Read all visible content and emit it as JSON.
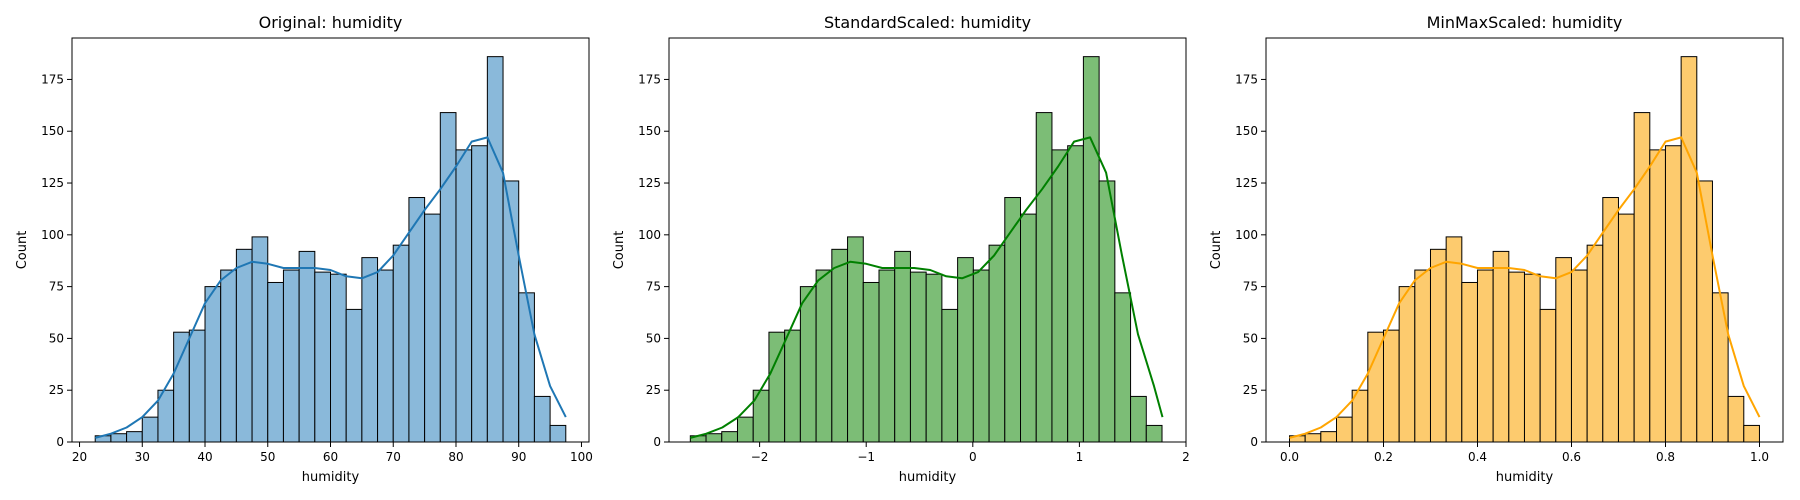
{
  "chart_data": [
    {
      "type": "bar",
      "subtype": "histogram-with-kde",
      "title": "Original: humidity",
      "xlabel": "humidity",
      "ylabel": "Count",
      "xlim": [
        18.8,
        101.2
      ],
      "ylim": [
        0,
        195
      ],
      "xticks": [
        20,
        30,
        40,
        50,
        60,
        70,
        80,
        90,
        100
      ],
      "xtick_labels": [
        "20",
        "30",
        "40",
        "50",
        "60",
        "70",
        "80",
        "90",
        "100"
      ],
      "yticks": [
        0,
        25,
        50,
        75,
        100,
        125,
        150,
        175
      ],
      "ytick_labels": [
        "0",
        "25",
        "50",
        "75",
        "100",
        "125",
        "150",
        "175"
      ],
      "bin_start": 22.5,
      "bin_width": 2.5,
      "counts": [
        3,
        4,
        5,
        12,
        25,
        53,
        54,
        75,
        83,
        93,
        99,
        77,
        83,
        92,
        82,
        81,
        64,
        89,
        83,
        95,
        118,
        110,
        159,
        141,
        143,
        186,
        126,
        72,
        22,
        8
      ],
      "kde": {
        "x": [
          22.5,
          25,
          27.5,
          30,
          32.5,
          35,
          37.5,
          40,
          42.5,
          45,
          47.5,
          50,
          52.5,
          55,
          57.5,
          60,
          62.5,
          65,
          67.5,
          70,
          72.5,
          75,
          77.5,
          80,
          82.5,
          85,
          87.5,
          90,
          92.5,
          95,
          97.5
        ],
        "y": [
          2,
          4,
          7,
          12,
          20,
          33,
          50,
          67,
          78,
          84,
          87,
          86,
          84,
          84,
          84,
          83,
          80,
          79,
          82,
          90,
          101,
          112,
          122,
          133,
          145,
          147,
          130,
          90,
          52,
          27,
          12
        ]
      },
      "bar_color": "#8ab9da",
      "line_color": "#1f77b4"
    },
    {
      "type": "bar",
      "subtype": "histogram-with-kde",
      "title": "StandardScaled: humidity",
      "xlabel": "humidity",
      "ylabel": "Count",
      "xlim": [
        -2.85,
        2.0
      ],
      "ylim": [
        0,
        195
      ],
      "xticks": [
        -2,
        -1,
        0,
        1,
        2
      ],
      "xtick_labels": [
        "−2",
        "−1",
        "0",
        "1",
        "2"
      ],
      "yticks": [
        0,
        25,
        50,
        75,
        100,
        125,
        150,
        175
      ],
      "ytick_labels": [
        "0",
        "25",
        "50",
        "75",
        "100",
        "125",
        "150",
        "175"
      ],
      "bin_start": -2.65,
      "bin_width": 0.1475,
      "counts": [
        3,
        4,
        5,
        12,
        25,
        53,
        54,
        75,
        83,
        93,
        99,
        77,
        83,
        92,
        82,
        81,
        64,
        89,
        83,
        95,
        118,
        110,
        159,
        141,
        143,
        186,
        126,
        72,
        22,
        8
      ],
      "kde": {
        "x": [
          -2.65,
          -2.5,
          -2.35,
          -2.2,
          -2.05,
          -1.9,
          -1.75,
          -1.6,
          -1.45,
          -1.3,
          -1.15,
          -1.0,
          -0.85,
          -0.7,
          -0.55,
          -0.4,
          -0.25,
          -0.1,
          0.05,
          0.2,
          0.35,
          0.5,
          0.65,
          0.8,
          0.95,
          1.1,
          1.25,
          1.4,
          1.55,
          1.7,
          1.78
        ],
        "y": [
          2,
          4,
          7,
          12,
          20,
          33,
          50,
          67,
          78,
          84,
          87,
          86,
          84,
          84,
          84,
          83,
          80,
          79,
          82,
          90,
          101,
          112,
          122,
          133,
          145,
          147,
          130,
          90,
          52,
          27,
          12
        ]
      },
      "bar_color": "#7cbd76",
      "line_color": "#008000"
    },
    {
      "type": "bar",
      "subtype": "histogram-with-kde",
      "title": "MinMaxScaled: humidity",
      "xlabel": "humidity",
      "ylabel": "Count",
      "xlim": [
        -0.05,
        1.05
      ],
      "ylim": [
        0,
        195
      ],
      "xticks": [
        0.0,
        0.2,
        0.4,
        0.6,
        0.8,
        1.0
      ],
      "xtick_labels": [
        "0.0",
        "0.2",
        "0.4",
        "0.6",
        "0.8",
        "1.0"
      ],
      "yticks": [
        0,
        25,
        50,
        75,
        100,
        125,
        150,
        175
      ],
      "ytick_labels": [
        "0",
        "25",
        "50",
        "75",
        "100",
        "125",
        "150",
        "175"
      ],
      "bin_start": 0.0,
      "bin_width": 0.03333,
      "counts": [
        3,
        4,
        5,
        12,
        25,
        53,
        54,
        75,
        83,
        93,
        99,
        77,
        83,
        92,
        82,
        81,
        64,
        89,
        83,
        95,
        118,
        110,
        159,
        141,
        143,
        186,
        126,
        72,
        22,
        8
      ],
      "kde": {
        "x": [
          0.0,
          0.0333,
          0.0667,
          0.1,
          0.1333,
          0.1667,
          0.2,
          0.2333,
          0.2667,
          0.3,
          0.3333,
          0.3667,
          0.4,
          0.4333,
          0.4667,
          0.5,
          0.5333,
          0.5667,
          0.6,
          0.6333,
          0.6667,
          0.7,
          0.7333,
          0.7667,
          0.8,
          0.8333,
          0.8667,
          0.9,
          0.9333,
          0.9667,
          1.0
        ],
        "y": [
          2,
          4,
          7,
          12,
          20,
          33,
          50,
          67,
          78,
          84,
          87,
          86,
          84,
          84,
          84,
          83,
          80,
          79,
          82,
          90,
          101,
          112,
          122,
          133,
          145,
          147,
          130,
          90,
          52,
          27,
          12
        ]
      },
      "bar_color": "#fdcb6e",
      "line_color": "#ffa500"
    }
  ]
}
